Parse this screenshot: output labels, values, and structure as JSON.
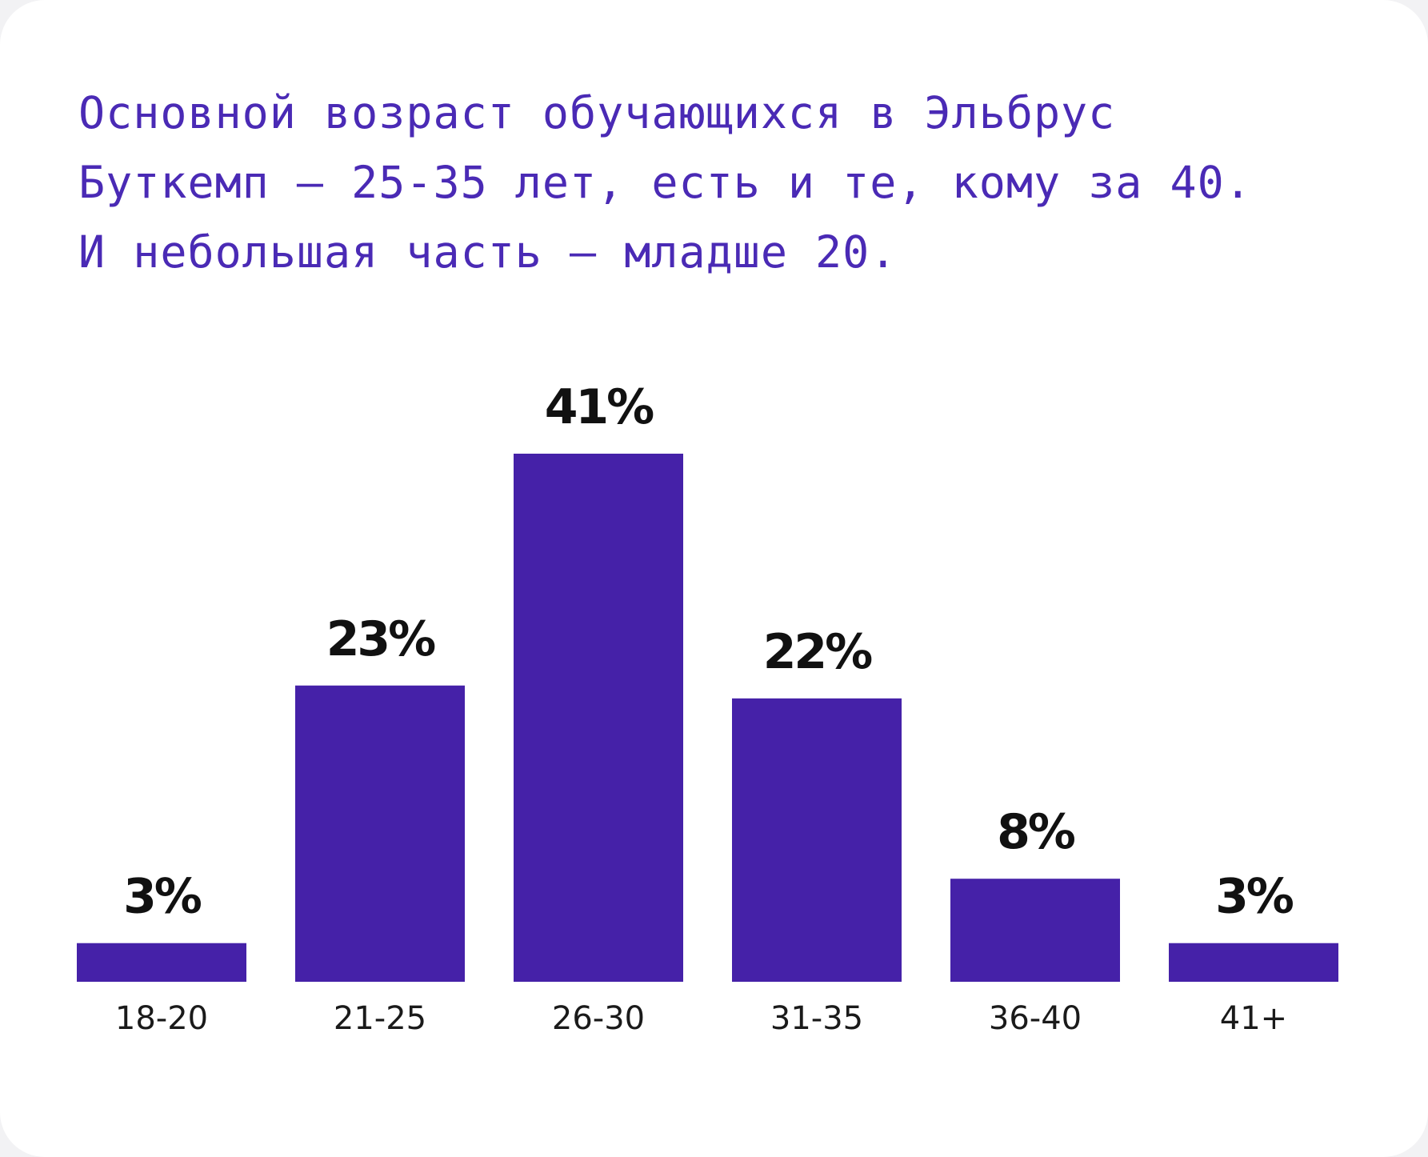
{
  "headline": {
    "lines": [
      "Основной возраст обучающихся в Эльбрус",
      "Буткемп – 25-35 лет, есть и те, кому за 40.",
      "И небольшая часть – младше 20."
    ]
  },
  "colors": {
    "bar": "#4521a8",
    "headline": "#4a2ab5",
    "background": "#ffffff"
  },
  "chart_data": {
    "type": "bar",
    "categories": [
      "18-20",
      "21-25",
      "26-30",
      "31-35",
      "36-40",
      "41+"
    ],
    "values": [
      3,
      23,
      41,
      22,
      8,
      3
    ],
    "value_labels": [
      "3%",
      "23%",
      "41%",
      "22%",
      "8%",
      "3%"
    ],
    "title": "",
    "xlabel": "",
    "ylabel": "",
    "ylim": [
      0,
      41
    ],
    "grid": false,
    "legend": "none"
  }
}
